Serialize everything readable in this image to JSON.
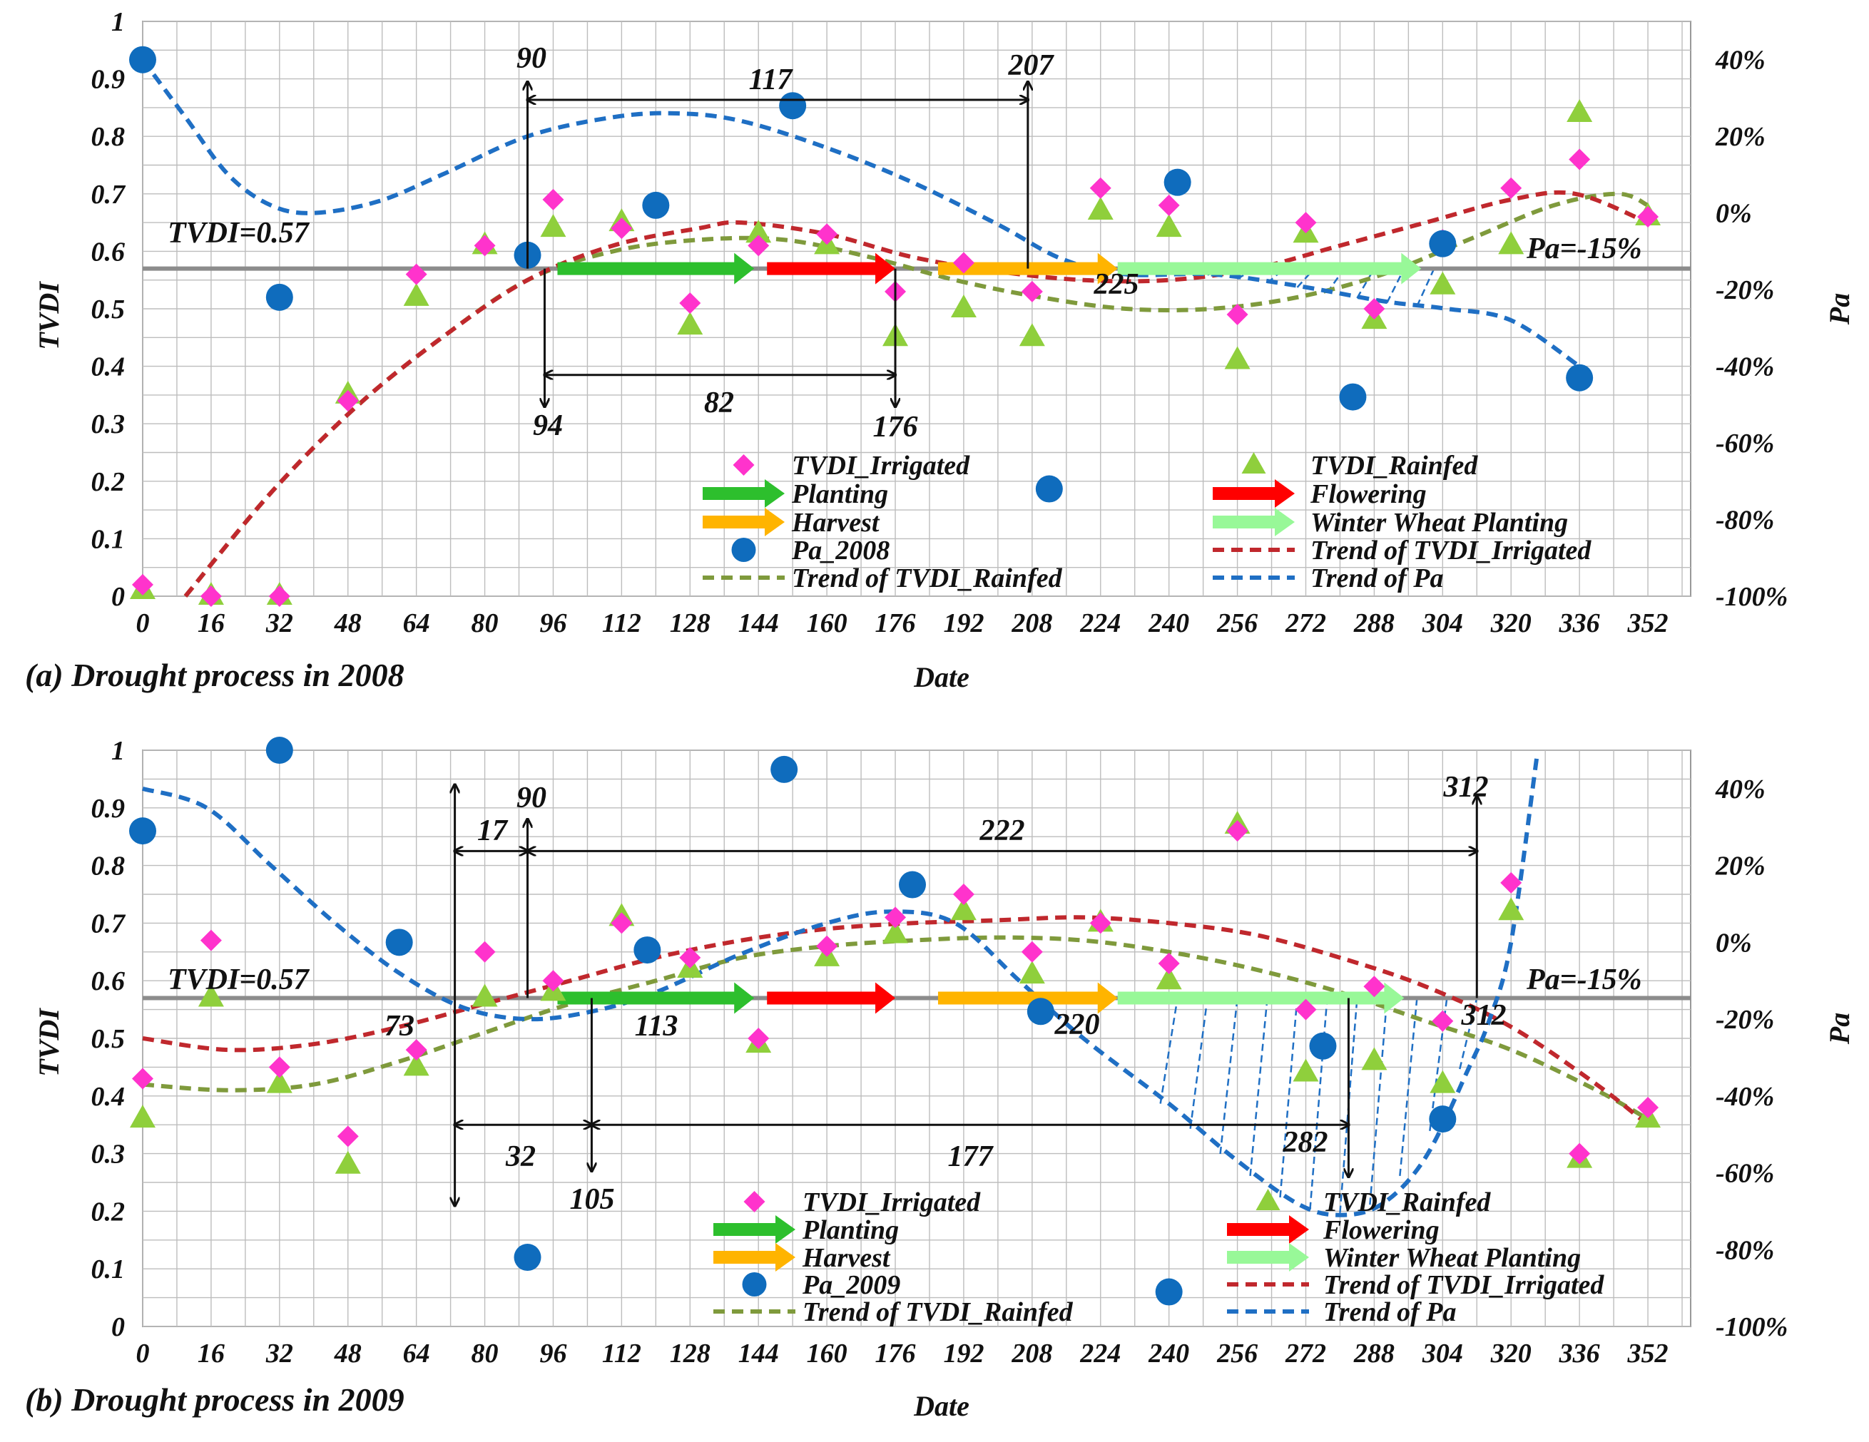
{
  "colors": {
    "irrigated": "#ff33cc",
    "rainfed": "#8fcf3c",
    "pa": "#0f6cbd",
    "planting": "#2dbf2d",
    "flowering": "#ff0000",
    "harvest": "#ffb400",
    "winter": "#98f898",
    "trend_irr": "#c0282d",
    "trend_rain": "#7f9a3c",
    "trend_pa": "#1f6fc4",
    "refline": "#8c8c8c",
    "grid": "#bdbdbd"
  },
  "x_axis": {
    "label": "Date",
    "ticks": [
      0,
      16,
      32,
      48,
      64,
      80,
      96,
      112,
      128,
      144,
      160,
      176,
      192,
      208,
      224,
      240,
      256,
      272,
      288,
      304,
      320,
      336,
      352
    ],
    "range": [
      0,
      362
    ]
  },
  "y_left": {
    "label": "TVDI",
    "ticks": [
      "0",
      "0.1",
      "0.2",
      "0.3",
      "0.4",
      "0.5",
      "0.6",
      "0.7",
      "0.8",
      "0.9",
      "1"
    ],
    "range": [
      0,
      1
    ]
  },
  "y_right": {
    "label": "Pa",
    "ticks": [
      "-100%",
      "-80%",
      "-60%",
      "-40%",
      "-20%",
      "0%",
      "20%",
      "40%"
    ],
    "range": [
      -100,
      50
    ]
  },
  "legend_labels": {
    "irrigated": "TVDI_Irrigated",
    "rainfed": "TVDI_Rainfed",
    "planting": "Planting",
    "flowering": "Flowering",
    "harvest": "Harvest",
    "winter": "Winter Wheat Planting",
    "trend_irr": "Trend of TVDI_Irrigated",
    "trend_rain": "Trend of TVDI_Rainfed",
    "trend_pa": "Trend of Pa"
  },
  "chart_data": [
    {
      "type": "scatter",
      "title": "(a) Drought process in 2008",
      "xlabel": "Date",
      "ylabel": "TVDI",
      "y2label": "Pa",
      "xlim": [
        0,
        362
      ],
      "ylim": [
        0,
        1
      ],
      "y2lim": [
        -100,
        50
      ],
      "pa_legend": "Pa_2008",
      "threshold_tvdi_label": "TVDI=0.57",
      "threshold_tvdi": 0.57,
      "threshold_pa_label": "Pa=-15%",
      "threshold_pa": -15,
      "series": [
        {
          "name": "TVDI_Irrigated",
          "axis": "left",
          "x": [
            0,
            16,
            32,
            48,
            64,
            80,
            90,
            96,
            112,
            128,
            144,
            160,
            176,
            192,
            208,
            224,
            240,
            256,
            272,
            288,
            304,
            320,
            336,
            352
          ],
          "y": [
            0.02,
            0,
            0,
            0.34,
            0.56,
            0.61,
            0.59,
            0.69,
            0.64,
            0.51,
            0.61,
            0.63,
            0.53,
            0.58,
            0.53,
            0.71,
            0.68,
            0.49,
            0.65,
            0.5,
            0.62,
            0.71,
            0.76,
            0.66
          ]
        },
        {
          "name": "TVDI_Rainfed",
          "axis": "left",
          "x": [
            0,
            16,
            32,
            48,
            64,
            80,
            96,
            112,
            128,
            144,
            160,
            176,
            192,
            208,
            224,
            240,
            256,
            272,
            288,
            304,
            320,
            336,
            352
          ],
          "y": [
            0.01,
            0,
            0,
            0.35,
            0.52,
            0.61,
            0.64,
            0.65,
            0.47,
            0.63,
            0.61,
            0.45,
            0.5,
            0.45,
            0.67,
            0.64,
            0.41,
            0.63,
            0.48,
            0.54,
            0.61,
            0.84,
            0.66
          ]
        },
        {
          "name": "Pa_2008",
          "axis": "right",
          "x": [
            0,
            32,
            90,
            120,
            152,
            212,
            242,
            304,
            336,
            283
          ],
          "y": [
            40,
            -22,
            -11,
            2,
            28,
            -72,
            8,
            -8,
            -43,
            -48
          ]
        },
        {
          "name": "Trend of TVDI_Irrigated",
          "axis": "left",
          "x": [
            10,
            30,
            50,
            70,
            90,
            110,
            130,
            140,
            160,
            180,
            200,
            220,
            240,
            260,
            280,
            300,
            320,
            335,
            352
          ],
          "y": [
            0,
            0.18,
            0.33,
            0.45,
            0.55,
            0.61,
            0.64,
            0.65,
            0.63,
            0.59,
            0.565,
            0.55,
            0.55,
            0.57,
            0.61,
            0.65,
            0.69,
            0.7,
            0.65
          ]
        },
        {
          "name": "Trend of TVDI_Rainfed",
          "axis": "left",
          "x": [
            10,
            30,
            50,
            70,
            90,
            110,
            130,
            150,
            170,
            190,
            210,
            230,
            250,
            270,
            290,
            310,
            330,
            345,
            352
          ],
          "y": [
            0,
            0.18,
            0.33,
            0.45,
            0.55,
            0.6,
            0.62,
            0.62,
            0.59,
            0.55,
            0.52,
            0.5,
            0.5,
            0.52,
            0.56,
            0.62,
            0.68,
            0.7,
            0.68
          ]
        },
        {
          "name": "Trend of Pa",
          "axis": "right",
          "x": [
            0,
            10,
            20,
            30,
            40,
            55,
            70,
            90,
            110,
            125,
            140,
            160,
            180,
            200,
            215,
            230,
            250,
            270,
            290,
            305,
            320,
            336
          ],
          "y": [
            40,
            25,
            10,
            2,
            0,
            3,
            10,
            20,
            25,
            26,
            24,
            17,
            8,
            -3,
            -12,
            -16,
            -16,
            -19,
            -23,
            -25,
            -28,
            -40
          ]
        }
      ],
      "phenology": {
        "planting": [
          97,
          143
        ],
        "flowering": [
          146,
          176
        ],
        "harvest": [
          186,
          228
        ],
        "winter": [
          228,
          299
        ]
      },
      "annotations": {
        "upper": {
          "left": 90,
          "right": 207,
          "span": 117,
          "labels": [
            "90",
            "207",
            "117"
          ]
        },
        "lower": {
          "left": 94,
          "right": 176,
          "span": 82,
          "labels": [
            "94",
            "176",
            "82"
          ]
        },
        "point_225": "225",
        "hatch": [
          230,
          305
        ]
      }
    },
    {
      "type": "scatter",
      "title": "(b) Drought process in 2009",
      "xlabel": "Date",
      "ylabel": "TVDI",
      "y2label": "Pa",
      "xlim": [
        0,
        362
      ],
      "ylim": [
        0,
        1
      ],
      "y2lim": [
        -100,
        50
      ],
      "pa_legend": "Pa_2009",
      "threshold_tvdi_label": "TVDI=0.57",
      "threshold_tvdi": 0.57,
      "threshold_pa_label": "Pa=-15%",
      "threshold_pa": -15,
      "series": [
        {
          "name": "TVDI_Irrigated",
          "axis": "left",
          "x": [
            0,
            16,
            32,
            48,
            64,
            80,
            96,
            112,
            128,
            144,
            160,
            176,
            192,
            208,
            224,
            240,
            256,
            272,
            288,
            304,
            320,
            336,
            352
          ],
          "y": [
            0.43,
            0.67,
            0.45,
            0.33,
            0.48,
            0.65,
            0.6,
            0.7,
            0.64,
            0.5,
            0.66,
            0.71,
            0.75,
            0.65,
            0.7,
            0.63,
            0.86,
            0.55,
            0.59,
            0.53,
            0.77,
            0.3,
            0.38
          ]
        },
        {
          "name": "TVDI_Rainfed",
          "axis": "left",
          "x": [
            0,
            16,
            32,
            48,
            64,
            80,
            96,
            112,
            128,
            144,
            160,
            176,
            192,
            208,
            224,
            240,
            256,
            272,
            288,
            304,
            320,
            336,
            352
          ],
          "y": [
            0.36,
            0.57,
            0.42,
            0.28,
            0.45,
            0.57,
            0.58,
            0.71,
            0.62,
            0.49,
            0.64,
            0.68,
            0.72,
            0.61,
            0.7,
            0.6,
            0.87,
            0.44,
            0.46,
            0.42,
            0.72,
            0.29,
            0.36
          ]
        },
        {
          "name": "Pa_2009",
          "axis": "right",
          "x": [
            0,
            32,
            60,
            90,
            118,
            150,
            180,
            210,
            240,
            276,
            304
          ],
          "y": [
            29,
            50,
            0,
            -82,
            -2,
            45,
            15,
            -18,
            -91,
            -27,
            -46
          ]
        },
        {
          "name": "Trend of TVDI_Irrigated",
          "axis": "left",
          "x": [
            0,
            20,
            40,
            60,
            80,
            100,
            120,
            140,
            160,
            180,
            200,
            220,
            240,
            260,
            280,
            300,
            320,
            340,
            352
          ],
          "y": [
            0.5,
            0.48,
            0.49,
            0.52,
            0.56,
            0.6,
            0.64,
            0.67,
            0.69,
            0.7,
            0.705,
            0.71,
            0.7,
            0.68,
            0.64,
            0.59,
            0.52,
            0.42,
            0.35
          ]
        },
        {
          "name": "Trend of TVDI_Rainfed",
          "axis": "left",
          "x": [
            0,
            20,
            40,
            60,
            80,
            100,
            120,
            140,
            160,
            180,
            200,
            220,
            240,
            260,
            280,
            300,
            320,
            340,
            352
          ],
          "y": [
            0.42,
            0.41,
            0.42,
            0.46,
            0.51,
            0.56,
            0.6,
            0.64,
            0.66,
            0.67,
            0.675,
            0.67,
            0.65,
            0.62,
            0.58,
            0.53,
            0.48,
            0.41,
            0.36
          ]
        },
        {
          "name": "Trend of Pa",
          "axis": "right",
          "x": [
            0,
            15,
            30,
            45,
            60,
            75,
            90,
            105,
            120,
            140,
            160,
            175,
            190,
            205,
            220,
            240,
            255,
            270,
            280,
            290,
            300,
            310,
            315,
            320,
            326
          ],
          "y": [
            40,
            35,
            20,
            5,
            -8,
            -17,
            -20,
            -18,
            -13,
            -3,
            5,
            8,
            5,
            -10,
            -25,
            -42,
            -56,
            -68,
            -71,
            -68,
            -56,
            -33,
            -20,
            0,
            48
          ]
        }
      ],
      "phenology": {
        "planting": [
          97,
          143
        ],
        "flowering": [
          146,
          176
        ],
        "harvest": [
          186,
          228
        ],
        "winter": [
          228,
          295
        ]
      },
      "annotations": {
        "upper": {
          "far_left": 73,
          "left": 90,
          "right": 312,
          "short_span": 17,
          "span": 222,
          "labels": [
            "90",
            "312",
            "17",
            "222"
          ]
        },
        "lower": {
          "far_left": 73,
          "left": 105,
          "right": 282,
          "short_span": 32,
          "span": 177,
          "labels": [
            "105",
            "282",
            "32",
            "177"
          ]
        },
        "point_73": "73",
        "point_113": "113",
        "point_220": "220",
        "point_312": "312",
        "hatch": [
          240,
          310
        ]
      }
    }
  ]
}
